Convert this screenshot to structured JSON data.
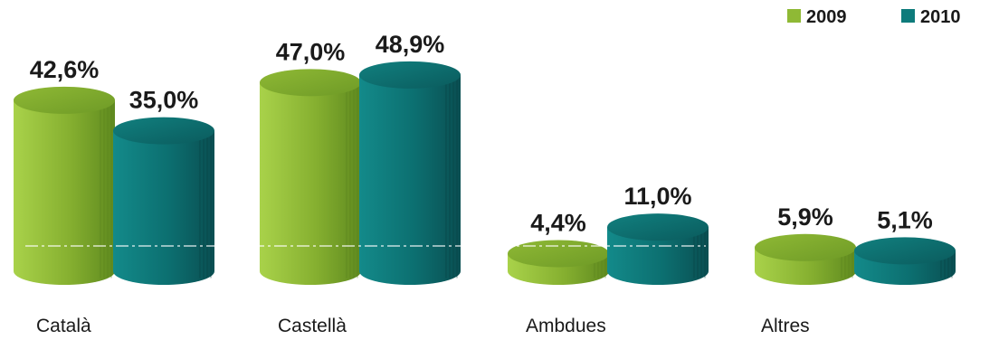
{
  "chart_data": {
    "type": "bar",
    "style": "3d-cylinder",
    "categories": [
      "Català",
      "Castellà",
      "Ambdues",
      "Altres"
    ],
    "series": [
      {
        "name": "2009",
        "color": "#8fb935",
        "values": [
          42.6,
          47.0,
          4.4,
          5.9
        ],
        "labels": [
          "42,6%",
          "47,0%",
          "4,4%",
          "5,9%"
        ]
      },
      {
        "name": "2010",
        "color": "#0e7b7b",
        "values": [
          35.0,
          48.9,
          11.0,
          5.1
        ],
        "labels": [
          "35,0%",
          "48,9%",
          "11,0%",
          "5,1%"
        ]
      }
    ],
    "ylim": [
      0,
      50
    ],
    "legend_position": "top-right",
    "grid": false
  }
}
